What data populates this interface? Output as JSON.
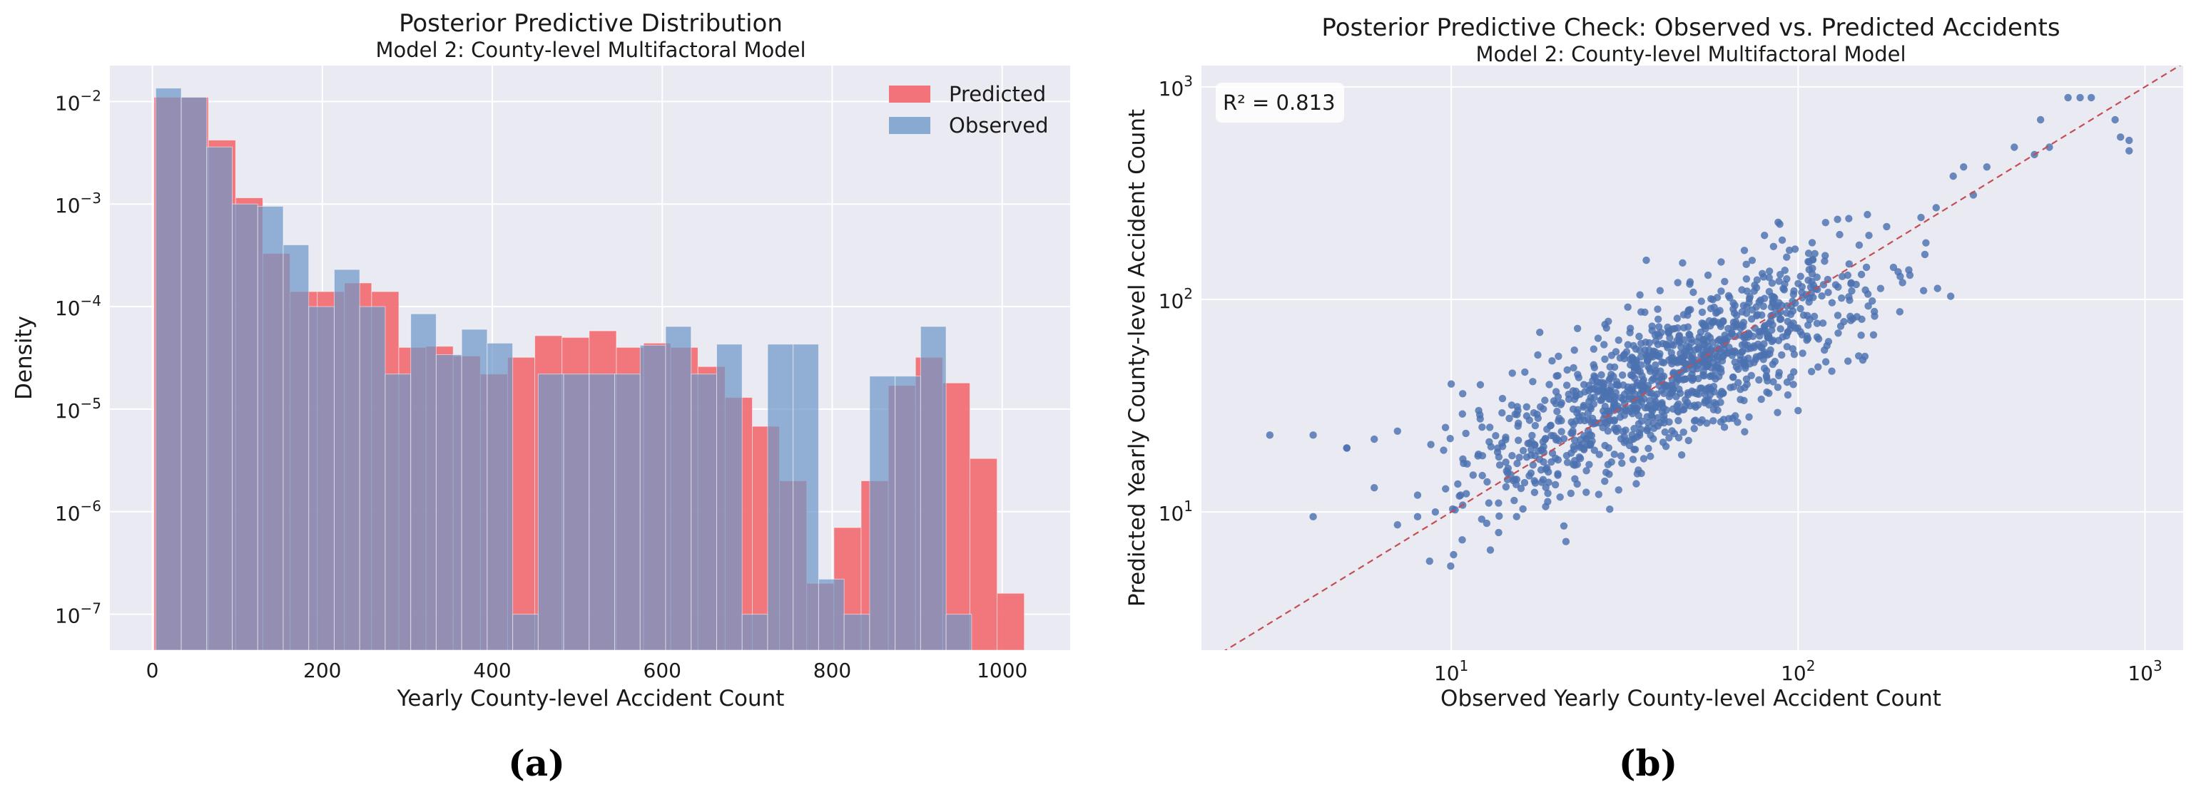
{
  "chart_data": [
    {
      "type": "histogram",
      "title": "Posterior Predictive Distribution",
      "subtitle": "Model 2: County-level Multifactoral Model",
      "xlabel": "Yearly County-level Accident Count",
      "ylabel": "Density",
      "xlim": [
        -50,
        1080
      ],
      "ylim_log10": [
        -7.35,
        -1.65
      ],
      "yscale": "log",
      "xticks": [
        0,
        200,
        400,
        600,
        800,
        1000
      ],
      "xtick_labels": [
        "0",
        "200",
        "400",
        "600",
        "800",
        "1000"
      ],
      "yticks_exp": [
        -7,
        -6,
        -5,
        -4,
        -3,
        -2
      ],
      "legend_location": "top-right",
      "caption": "(a)",
      "colors": {
        "background": "#eaeaf2",
        "grid": "#ffffff",
        "predicted": "#f08080",
        "observed": "#88a9d0",
        "overlap": "#8a7590"
      },
      "series": [
        {
          "name": "Predicted",
          "color": "#f26d72",
          "bins": [
            {
              "x0": 2,
              "x1": 34,
              "value": 0.011
            },
            {
              "x0": 34,
              "x1": 66,
              "value": 0.011
            },
            {
              "x0": 66,
              "x1": 98,
              "value": 0.0042
            },
            {
              "x0": 98,
              "x1": 130,
              "value": 0.00115
            },
            {
              "x0": 130,
              "x1": 162,
              "value": 0.00033
            },
            {
              "x0": 162,
              "x1": 194,
              "value": 0.00014
            },
            {
              "x0": 194,
              "x1": 226,
              "value": 0.00014
            },
            {
              "x0": 226,
              "x1": 258,
              "value": 0.00017
            },
            {
              "x0": 258,
              "x1": 290,
              "value": 0.00014
            },
            {
              "x0": 290,
              "x1": 322,
              "value": 4e-05
            },
            {
              "x0": 322,
              "x1": 354,
              "value": 4.1e-05
            },
            {
              "x0": 354,
              "x1": 386,
              "value": 3.3e-05
            },
            {
              "x0": 386,
              "x1": 418,
              "value": 2.2e-05
            },
            {
              "x0": 418,
              "x1": 450,
              "value": 3.2e-05
            },
            {
              "x0": 450,
              "x1": 482,
              "value": 5.2e-05
            },
            {
              "x0": 482,
              "x1": 514,
              "value": 5e-05
            },
            {
              "x0": 514,
              "x1": 546,
              "value": 5.8e-05
            },
            {
              "x0": 546,
              "x1": 578,
              "value": 4e-05
            },
            {
              "x0": 578,
              "x1": 610,
              "value": 4.4e-05
            },
            {
              "x0": 610,
              "x1": 642,
              "value": 4e-05
            },
            {
              "x0": 642,
              "x1": 674,
              "value": 2.6e-05
            },
            {
              "x0": 674,
              "x1": 706,
              "value": 1.3e-05
            },
            {
              "x0": 706,
              "x1": 738,
              "value": 6.8e-06
            },
            {
              "x0": 738,
              "x1": 770,
              "value": 2e-06
            },
            {
              "x0": 770,
              "x1": 802,
              "value": 2e-07
            },
            {
              "x0": 802,
              "x1": 834,
              "value": 7e-07
            },
            {
              "x0": 834,
              "x1": 866,
              "value": 2e-06
            },
            {
              "x0": 866,
              "x1": 898,
              "value": 1.7e-05
            },
            {
              "x0": 898,
              "x1": 930,
              "value": 3.2e-05
            },
            {
              "x0": 930,
              "x1": 962,
              "value": 1.8e-05
            },
            {
              "x0": 962,
              "x1": 994,
              "value": 3.3e-06
            },
            {
              "x0": 994,
              "x1": 1026,
              "value": 1.6e-07
            }
          ]
        },
        {
          "name": "Observed",
          "color": "#88a9d0",
          "bins": [
            {
              "x0": 4,
              "x1": 34,
              "value": 0.0135
            },
            {
              "x0": 34,
              "x1": 64,
              "value": 0.011
            },
            {
              "x0": 64,
              "x1": 94,
              "value": 0.0036
            },
            {
              "x0": 94,
              "x1": 124,
              "value": 0.001
            },
            {
              "x0": 124,
              "x1": 154,
              "value": 0.00095
            },
            {
              "x0": 154,
              "x1": 184,
              "value": 0.0004
            },
            {
              "x0": 184,
              "x1": 214,
              "value": 0.0001
            },
            {
              "x0": 214,
              "x1": 244,
              "value": 0.00023
            },
            {
              "x0": 244,
              "x1": 274,
              "value": 0.0001
            },
            {
              "x0": 274,
              "x1": 304,
              "value": 2.2e-05
            },
            {
              "x0": 304,
              "x1": 334,
              "value": 8.5e-05
            },
            {
              "x0": 334,
              "x1": 364,
              "value": 3.4e-05
            },
            {
              "x0": 364,
              "x1": 394,
              "value": 6e-05
            },
            {
              "x0": 394,
              "x1": 424,
              "value": 4.4e-05
            },
            {
              "x0": 424,
              "x1": 454,
              "value": 1e-07
            },
            {
              "x0": 454,
              "x1": 484,
              "value": 2.2e-05
            },
            {
              "x0": 484,
              "x1": 514,
              "value": 2.2e-05
            },
            {
              "x0": 514,
              "x1": 544,
              "value": 2.2e-05
            },
            {
              "x0": 544,
              "x1": 574,
              "value": 2.2e-05
            },
            {
              "x0": 574,
              "x1": 604,
              "value": 4.2e-05
            },
            {
              "x0": 604,
              "x1": 634,
              "value": 6.4e-05
            },
            {
              "x0": 634,
              "x1": 664,
              "value": 2.2e-05
            },
            {
              "x0": 664,
              "x1": 694,
              "value": 4.3e-05
            },
            {
              "x0": 694,
              "x1": 724,
              "value": 1e-07
            },
            {
              "x0": 724,
              "x1": 754,
              "value": 4.3e-05
            },
            {
              "x0": 754,
              "x1": 784,
              "value": 4.3e-05
            },
            {
              "x0": 784,
              "x1": 814,
              "value": 2.2e-07
            },
            {
              "x0": 814,
              "x1": 844,
              "value": 1e-07
            },
            {
              "x0": 844,
              "x1": 874,
              "value": 2.1e-05
            },
            {
              "x0": 874,
              "x1": 904,
              "value": 2.1e-05
            },
            {
              "x0": 904,
              "x1": 934,
              "value": 6.4e-05
            },
            {
              "x0": 934,
              "x1": 964,
              "value": 1e-07
            }
          ]
        }
      ]
    },
    {
      "type": "scatter",
      "title": "Posterior Predictive Check: Observed vs. Predicted Accidents",
      "subtitle": "Model 2: County-level Multifactoral Model",
      "xlabel": "Observed Yearly County-level Accident Count",
      "ylabel": "Predicted Yearly County-level Accident Count",
      "xscale": "log",
      "yscale": "log",
      "xlim_log10": [
        0.28,
        3.11
      ],
      "ylim_log10": [
        0.35,
        3.1
      ],
      "xticks_exp": [
        1,
        2,
        3
      ],
      "yticks_exp": [
        1,
        2,
        3
      ],
      "annotation": "R² = 0.813",
      "reference_line": "y = x",
      "caption": "(b)",
      "colors": {
        "points": "#4c72b0",
        "reference_line": "#c44e52",
        "background": "#eaeaf2"
      },
      "points_generated": 1150,
      "points": [
        [
          3,
          23
        ],
        [
          4,
          9.5
        ],
        [
          4,
          23
        ],
        [
          5,
          20
        ],
        [
          5,
          20
        ],
        [
          6,
          13
        ],
        [
          6,
          22
        ],
        [
          7,
          8.7
        ],
        [
          7,
          24
        ],
        [
          8,
          9.5
        ],
        [
          8,
          12
        ],
        [
          9,
          10
        ],
        [
          10,
          40
        ],
        [
          12,
          30
        ],
        [
          15,
          45
        ],
        [
          18,
          70
        ],
        [
          600,
          890
        ],
        [
          650,
          890
        ],
        [
          700,
          890
        ],
        [
          820,
          700
        ],
        [
          900,
          500
        ],
        [
          900,
          560
        ],
        [
          850,
          580
        ],
        [
          500,
          700
        ],
        [
          480,
          480
        ],
        [
          530,
          520
        ],
        [
          420,
          520
        ],
        [
          350,
          420
        ],
        [
          320,
          310
        ],
        [
          300,
          420
        ],
        [
          280,
          380
        ],
        [
          250,
          270
        ],
        [
          230,
          110
        ],
        [
          210,
          130
        ],
        [
          200,
          120
        ],
        [
          180,
          220
        ],
        [
          160,
          200
        ],
        [
          150,
          180
        ],
        [
          140,
          240
        ],
        [
          120,
          230
        ],
        [
          110,
          140
        ],
        [
          100,
          30
        ],
        [
          90,
          190
        ],
        [
          80,
          200
        ],
        [
          70,
          170
        ],
        [
          60,
          150
        ],
        [
          55,
          130
        ],
        [
          45,
          120
        ],
        [
          40,
          110
        ],
        [
          35,
          105
        ]
      ]
    }
  ],
  "legend": {
    "predicted_label": "Predicted",
    "observed_label": "Observed"
  }
}
